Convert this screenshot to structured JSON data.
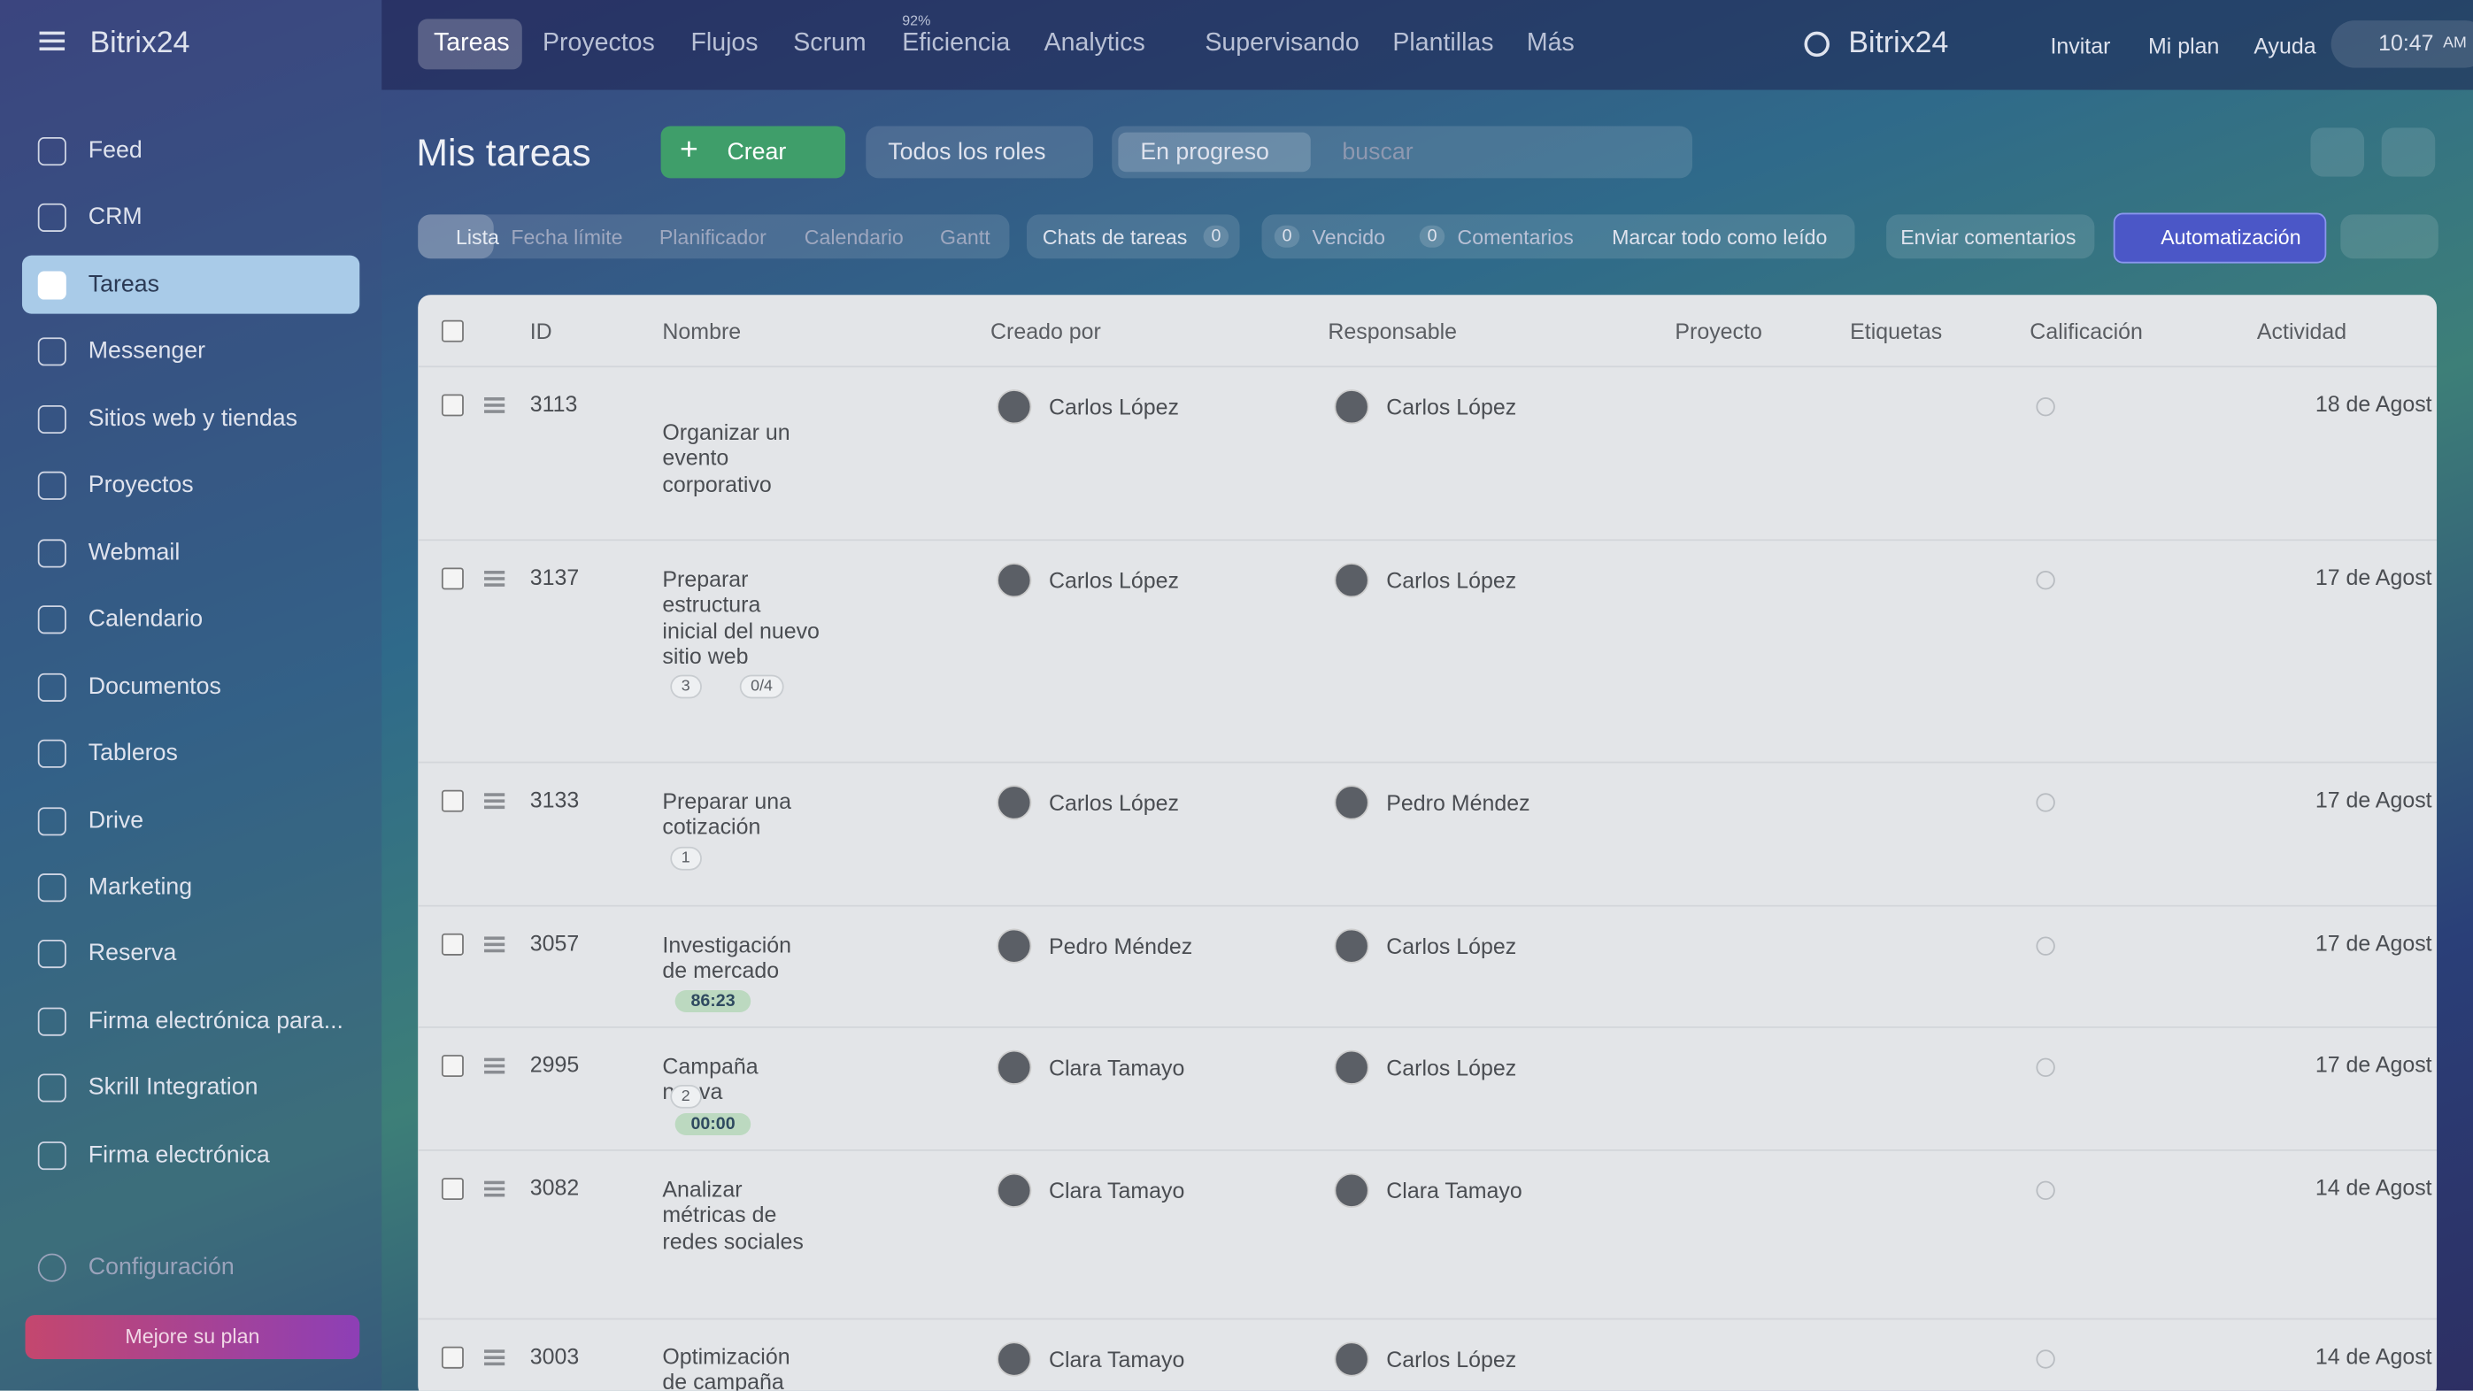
{
  "brand": "Bitrix24",
  "sidebar": {
    "items": [
      "Feed",
      "CRM",
      "Tareas",
      "Messenger",
      "Sitios web y tiendas",
      "Proyectos",
      "Webmail",
      "Calendario",
      "Documentos",
      "Tableros",
      "Drive",
      "Marketing",
      "Reserva",
      "Firma electrónica para...",
      "Skrill Integration",
      "Firma electrónica"
    ],
    "settings": "Configuración",
    "upgrade": "Mejore su plan"
  },
  "topnav": {
    "items": [
      "Tareas",
      "Proyectos",
      "Flujos",
      "Scrum",
      "Eficiencia",
      "Analytics",
      "Supervisando",
      "Plantillas",
      "Más"
    ],
    "efficiency_badge": "92%",
    "brand": "Bitrix24",
    "actions": [
      "Invitar",
      "Mi plan",
      "Ayuda"
    ],
    "time": "10:47",
    "ampm": "AM"
  },
  "page": {
    "title": "Mis tareas",
    "create": "Crear",
    "roles": "Todos los roles",
    "filter": "En progreso",
    "search_placeholder": "buscar"
  },
  "views": [
    "Lista",
    "Fecha límite",
    "Planificador",
    "Calendario",
    "Gantt"
  ],
  "counters": {
    "chats": "Chats de tareas",
    "chats_count": 0,
    "overdue_count": 0,
    "overdue": "Vencido",
    "comments_count": 0,
    "comments": "Comentarios",
    "mark_read": "Marcar todo como leído"
  },
  "buttons": {
    "feedback": "Enviar comentarios",
    "automation": "Automatización"
  },
  "table": {
    "headers": [
      "ID",
      "Nombre",
      "Creado por",
      "Responsable",
      "Proyecto",
      "Etiquetas",
      "Calificación",
      "Actividad"
    ],
    "rows": [
      {
        "id": 3113,
        "name": "Organizar un evento corporativo",
        "creator": "Carlos López",
        "responsible": "Carlos López",
        "activity": "18 de Agost"
      },
      {
        "id": 3137,
        "name": "Preparar estructura inicial del nuevo sitio web",
        "attachments": 3,
        "checklist": "0/4",
        "creator": "Carlos López",
        "responsible": "Carlos López",
        "activity": "17 de Agost"
      },
      {
        "id": 3133,
        "name": "Preparar una cotización",
        "attachments": 1,
        "creator": "Carlos López",
        "responsible": "Pedro Méndez",
        "activity": "17 de Agost"
      },
      {
        "id": 3057,
        "name": "Investigación de mercado",
        "timer": "86:23",
        "creator": "Pedro Méndez",
        "responsible": "Carlos López",
        "activity": "17 de Agost"
      },
      {
        "id": 2995,
        "name": "Campaña nueva",
        "attachments": 2,
        "timer": "00:00",
        "creator": "Clara Tamayo",
        "responsible": "Carlos López",
        "activity": "17 de Agost"
      },
      {
        "id": 3082,
        "name": "Analizar métricas de redes sociales",
        "creator": "Clara Tamayo",
        "responsible": "Clara Tamayo",
        "activity": "14 de Agost"
      },
      {
        "id": 3003,
        "name": "Optimización de campaña",
        "creator": "Clara Tamayo",
        "responsible": "Carlos López",
        "activity": "14 de Agost"
      }
    ]
  }
}
